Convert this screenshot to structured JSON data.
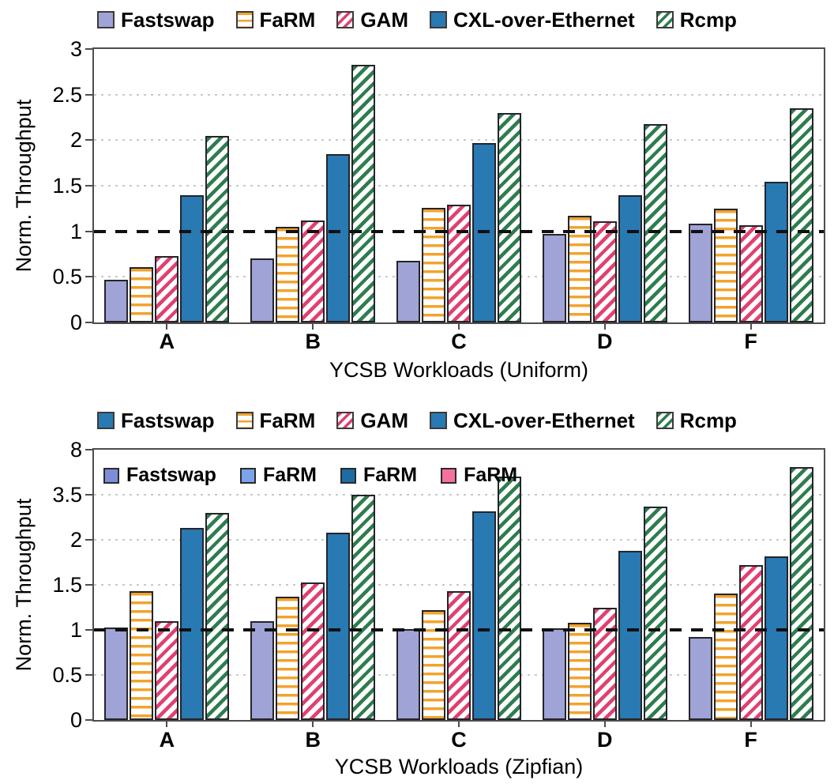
{
  "figure": {
    "background": "#ffffff",
    "bar_border_color": "#24242a",
    "axis_border_color": "#4e4e4e",
    "grid_color": "#c6cac6",
    "refline_color": "#101010"
  },
  "charts": [
    {
      "id": "uniform",
      "legend": {
        "items": [
          {
            "label": "Fastswap",
            "pattern": "solid",
            "color": "#a0a3d5"
          },
          {
            "label": "FaRM",
            "pattern": "hstripe",
            "color": "#f2a32c"
          },
          {
            "label": "GAM",
            "pattern": "dstripe",
            "color": "#e04070"
          },
          {
            "label": "CXL-over-Ethernet",
            "pattern": "solid",
            "color": "#2979b2"
          },
          {
            "label": "Rcmp",
            "pattern": "dstripe",
            "color": "#2e7d4e"
          }
        ]
      },
      "inner_legend": null,
      "chart_data": {
        "type": "bar",
        "title": "",
        "xlabel": "YCSB Workloads (Uniform)",
        "ylabel": "Norm. Throughput",
        "categories": [
          "A",
          "B",
          "C",
          "D",
          "F"
        ],
        "yticks": [
          0,
          0.5,
          1,
          1.5,
          2,
          2.5,
          3
        ],
        "ytick_labels": [
          "0",
          "0.5",
          "1",
          "1.5",
          "2",
          "2.5",
          "3"
        ],
        "ylim": [
          0,
          3
        ],
        "scale": "linear",
        "grid": "horizontal-dotted",
        "legend_position": "top-center",
        "reference_line": 1,
        "series": [
          {
            "name": "Fastswap",
            "pattern": "solid",
            "color": "#a0a3d5",
            "values": [
              0.47,
              0.7,
              0.68,
              0.97,
              1.08
            ]
          },
          {
            "name": "FaRM",
            "pattern": "hstripe",
            "color": "#f2a32c",
            "values": [
              0.61,
              1.05,
              1.26,
              1.17,
              1.25
            ]
          },
          {
            "name": "GAM",
            "pattern": "dstripe",
            "color": "#e04070",
            "values": [
              0.73,
              1.12,
              1.29,
              1.11,
              1.07
            ]
          },
          {
            "name": "CXL-over-Ethernet",
            "pattern": "solid",
            "color": "#2979b2",
            "values": [
              1.4,
              1.85,
              1.97,
              1.4,
              1.54
            ]
          },
          {
            "name": "Rcmp",
            "pattern": "dstripe",
            "color": "#2e7d4e",
            "values": [
              2.05,
              2.83,
              2.3,
              2.18,
              2.35
            ]
          }
        ]
      }
    },
    {
      "id": "zipfian",
      "legend": {
        "items": [
          {
            "label": "Fastswap",
            "pattern": "solid",
            "color": "#2979b2"
          },
          {
            "label": "FaRM",
            "pattern": "hstripe",
            "color": "#f2a32c"
          },
          {
            "label": "GAM",
            "pattern": "dstripe",
            "color": "#e04070"
          },
          {
            "label": "CXL-over-Ethernet",
            "pattern": "solid",
            "color": "#2979b2"
          },
          {
            "label": "Rcmp",
            "pattern": "dstripe",
            "color": "#2e7d4e"
          }
        ]
      },
      "inner_legend": {
        "items": [
          {
            "label": "Fastswap",
            "pattern": "solid",
            "color": "#7f8cd8"
          },
          {
            "label": "FaRM",
            "pattern": "solid",
            "color": "#7aa4ea"
          },
          {
            "label": "FaRM",
            "pattern": "solid",
            "color": "#1e6ca3"
          },
          {
            "label": "FaRM",
            "pattern": "solid",
            "color": "#f4709d"
          }
        ]
      },
      "chart_data": {
        "type": "bar",
        "title": "",
        "xlabel": "YCSB Workloads (Zipfian)",
        "ylabel": "Norm. Throughput",
        "categories": [
          "A",
          "B",
          "C",
          "D",
          "F"
        ],
        "yticks": [
          0,
          0.5,
          1,
          1.5,
          2,
          3.5,
          8
        ],
        "ytick_labels": [
          "0",
          "0.5",
          "1",
          "1.5",
          "2",
          "3.5",
          "8"
        ],
        "ylim": [
          0,
          8
        ],
        "scale": "piecewise-equal-tick-spacing",
        "grid": "horizontal-dotted",
        "legend_position": "top-center",
        "reference_line": 1,
        "series": [
          {
            "name": "Fastswap",
            "pattern": "solid",
            "color": "#a0a3d5",
            "values": [
              1.03,
              1.1,
              1.01,
              1.02,
              0.92
            ]
          },
          {
            "name": "FaRM",
            "pattern": "hstripe",
            "color": "#f2a32c",
            "values": [
              1.43,
              1.37,
              1.22,
              1.08,
              1.4
            ]
          },
          {
            "name": "GAM",
            "pattern": "dstripe",
            "color": "#e04070",
            "values": [
              1.1,
              1.53,
              1.43,
              1.25,
              1.72
            ]
          },
          {
            "name": "CXL-over-Ethernet",
            "pattern": "solid",
            "color": "#2979b2",
            "values": [
              2.4,
              2.25,
              2.95,
              1.88,
              1.82
            ]
          },
          {
            "name": "Rcmp",
            "pattern": "dstripe",
            "color": "#2e7d4e",
            "values": [
              2.9,
              3.5,
              5.3,
              3.1,
              6.3
            ]
          }
        ]
      }
    }
  ]
}
